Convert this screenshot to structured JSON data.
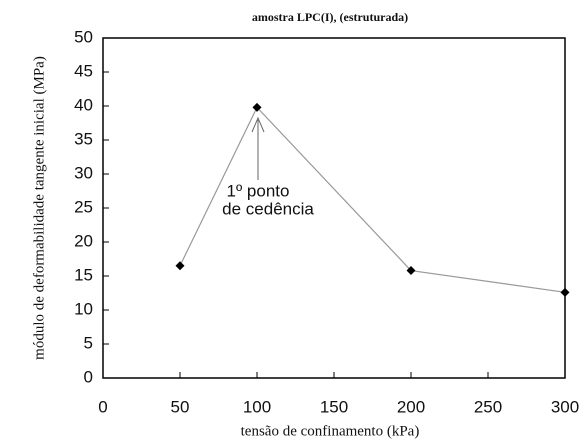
{
  "chart_data": {
    "type": "line",
    "title": "amostra LPC(I), (estruturada)",
    "x_label": "tensão de confinamento (kPa)",
    "y_label": "módulo de deformabilidade tangente inicial (MPa)",
    "x": [
      50,
      100,
      200,
      300
    ],
    "series": [
      {
        "name": "amostra LPC(I)",
        "color": "#999999",
        "values": [
          16.5,
          39.8,
          15.8,
          12.6
        ]
      }
    ],
    "marker_color": "#000000",
    "annotation": [
      "1º ponto",
      "de cedência"
    ],
    "xlim": [
      0,
      300
    ],
    "xticks": [
      0,
      50,
      100,
      150,
      200,
      250,
      300
    ],
    "ylim": [
      0,
      50
    ],
    "yticks": [
      0,
      5,
      10,
      15,
      20,
      25,
      30,
      35,
      40,
      45,
      50
    ],
    "grid": false
  }
}
